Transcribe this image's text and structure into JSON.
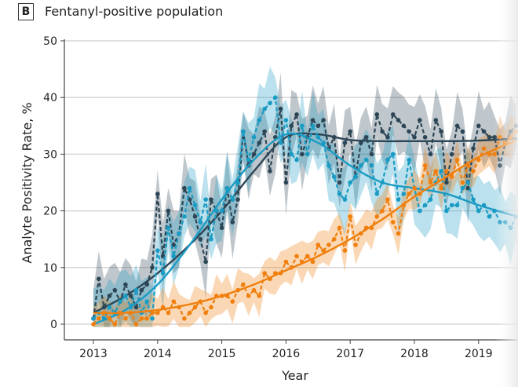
{
  "panel": "B",
  "chart_data": {
    "type": "line",
    "title": "Fentanyl-positive population",
    "xlabel": "Year",
    "ylabel": "Analyte Positivity Rate, %",
    "ylim": [
      0,
      50
    ],
    "xlim": [
      2012.55,
      2019.6
    ],
    "yticks": [
      0,
      10,
      20,
      30,
      40,
      50
    ],
    "xticks": [
      2013,
      2014,
      2015,
      2016,
      2017,
      2018,
      2019
    ],
    "grid": "horizontal",
    "monthly_start": 2013.0,
    "series": [
      {
        "color": "#2d4656",
        "ci_halfwidth": 5,
        "monthly": [
          1,
          8,
          3,
          5,
          6,
          4,
          7,
          5,
          3,
          6,
          7,
          10,
          23,
          12,
          20,
          14,
          16,
          24,
          22,
          19,
          15,
          11,
          22,
          20,
          17,
          24,
          18,
          22,
          34,
          28,
          30,
          32,
          34,
          27,
          33,
          38,
          25,
          35,
          37,
          30,
          33,
          36,
          35,
          36,
          31,
          33,
          25,
          32,
          34,
          26,
          32,
          33,
          30,
          37,
          34,
          33,
          37,
          36,
          35,
          34,
          33,
          36,
          33,
          30,
          36,
          34,
          25,
          30,
          35,
          34,
          24,
          31,
          35,
          34,
          33,
          33,
          28,
          32,
          34,
          35
        ],
        "trend": [
          [
            2013,
            2
          ],
          [
            2013.5,
            5
          ],
          [
            2014,
            9
          ],
          [
            2014.5,
            14
          ],
          [
            2015,
            20
          ],
          [
            2015.5,
            27
          ],
          [
            2016,
            33
          ],
          [
            2016.5,
            33.5
          ],
          [
            2017,
            32.5
          ],
          [
            2017.5,
            32.3
          ],
          [
            2018,
            32.3
          ],
          [
            2018.5,
            32.3
          ],
          [
            2019,
            32.4
          ],
          [
            2019.6,
            32.8
          ]
        ]
      },
      {
        "color": "#1a9bc4",
        "ci_halfwidth": 5,
        "monthly": [
          1,
          2,
          1,
          3,
          2,
          4,
          5,
          3,
          6,
          2,
          4,
          1,
          13,
          9,
          17,
          12,
          16,
          19,
          24,
          21,
          18,
          22,
          15,
          20,
          20,
          24,
          22,
          25,
          34,
          29,
          33,
          36,
          38,
          39,
          40,
          32,
          36,
          30,
          29,
          35,
          30,
          35,
          33,
          32,
          28,
          26,
          23,
          22,
          25,
          26,
          28,
          29,
          28,
          23,
          25,
          29,
          30,
          22,
          23,
          29,
          24,
          20,
          21,
          22,
          25,
          27,
          20,
          21,
          21,
          24,
          25,
          22,
          20,
          21,
          19,
          20,
          18,
          18,
          17,
          19
        ],
        "trend": [
          [
            2013,
            0
          ],
          [
            2013.5,
            2.5
          ],
          [
            2014,
            7
          ],
          [
            2014.5,
            14
          ],
          [
            2015,
            22
          ],
          [
            2015.5,
            29
          ],
          [
            2016,
            33.5
          ],
          [
            2016.5,
            32
          ],
          [
            2017,
            28
          ],
          [
            2017.5,
            25
          ],
          [
            2018,
            24
          ],
          [
            2018.5,
            23
          ],
          [
            2019,
            21
          ],
          [
            2019.6,
            19
          ]
        ]
      },
      {
        "color": "#f07f0d",
        "ci_halfwidth": 3,
        "monthly": [
          0,
          1,
          2,
          1,
          0,
          2,
          1,
          2,
          0,
          1,
          1,
          2,
          2,
          3,
          2,
          4,
          3,
          1,
          2,
          3,
          4,
          2,
          3,
          5,
          5,
          5,
          4,
          6,
          7,
          5,
          6,
          5,
          9,
          8,
          9,
          9,
          11,
          10,
          12,
          11,
          12,
          11,
          14,
          13,
          14,
          15,
          17,
          13,
          19,
          14,
          16,
          17,
          17,
          19,
          20,
          22,
          18,
          16,
          21,
          23,
          24,
          23,
          28,
          25,
          27,
          24,
          27,
          26,
          29,
          25,
          28,
          27,
          29,
          31,
          30,
          30,
          33,
          32,
          33,
          34
        ],
        "trend": [
          [
            2013,
            2
          ],
          [
            2013.5,
            2
          ],
          [
            2014,
            2.5
          ],
          [
            2014.5,
            3.5
          ],
          [
            2015,
            5
          ],
          [
            2015.5,
            7
          ],
          [
            2016,
            9.5
          ],
          [
            2016.5,
            12
          ],
          [
            2017,
            15
          ],
          [
            2017.5,
            18.5
          ],
          [
            2018,
            22.5
          ],
          [
            2018.5,
            26
          ],
          [
            2019,
            29.5
          ],
          [
            2019.6,
            32.5
          ]
        ]
      }
    ]
  }
}
